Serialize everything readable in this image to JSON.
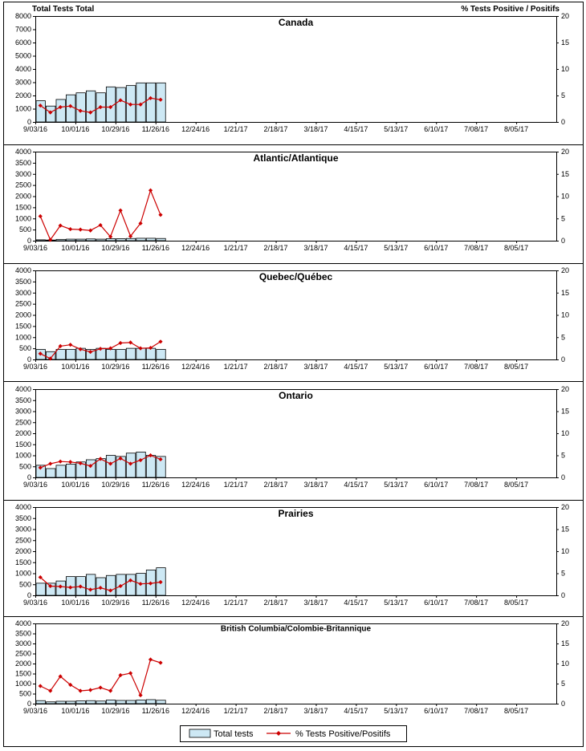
{
  "header": {
    "left_axis_title": "Total Tests Total",
    "right_axis_title": "% Tests Positive / Positifs"
  },
  "legend": {
    "bar_label": "Total tests",
    "line_label": "% Tests Positive/Positifs"
  },
  "colors": {
    "bar_fill": "#cde8f4",
    "bar_stroke": "#000000",
    "line": "#cc0000",
    "axis": "#000000"
  },
  "x_ticks": [
    "9/03/16",
    "10/01/16",
    "10/29/16",
    "11/26/16",
    "12/24/16",
    "1/21/17",
    "2/18/17",
    "3/18/17",
    "4/15/17",
    "5/13/17",
    "6/10/17",
    "7/08/17",
    "8/05/17"
  ],
  "chart_data": [
    {
      "type": "bar",
      "title": "Canada",
      "ylim": [
        0,
        8000
      ],
      "y_ticks": [
        "0",
        "1000",
        "2000",
        "3000",
        "4000",
        "5000",
        "6000",
        "7000",
        "8000"
      ],
      "y2lim": [
        0,
        20
      ],
      "y2_ticks": [
        "0",
        "5",
        "10",
        "15",
        "20"
      ],
      "weeks": 52,
      "series": [
        {
          "name": "Total tests",
          "axis": "left",
          "values": [
            1600,
            1200,
            1700,
            2050,
            2200,
            2350,
            2200,
            2650,
            2600,
            2750,
            2950,
            2950,
            2950
          ]
        },
        {
          "name": "% Tests Positive/Positifs",
          "axis": "right",
          "values": [
            3.1,
            1.8,
            2.8,
            3.0,
            2.1,
            1.8,
            2.8,
            2.8,
            4.1,
            3.3,
            3.3,
            4.5,
            4.2
          ]
        }
      ]
    },
    {
      "type": "bar",
      "title": "Atlantic/Atlantique",
      "ylim": [
        0,
        4000
      ],
      "y_ticks": [
        "0",
        "500",
        "1000",
        "1500",
        "2000",
        "2500",
        "3000",
        "3500",
        "4000"
      ],
      "y2lim": [
        0,
        20
      ],
      "y2_ticks": [
        "0",
        "5",
        "10",
        "15",
        "20"
      ],
      "weeks": 52,
      "series": [
        {
          "name": "Total tests",
          "axis": "left",
          "values": [
            40,
            30,
            60,
            70,
            70,
            80,
            70,
            90,
            90,
            100,
            110,
            110,
            100
          ]
        },
        {
          "name": "% Tests Positive/Positifs",
          "axis": "right",
          "values": [
            5.5,
            0.2,
            3.4,
            2.6,
            2.5,
            2.3,
            3.5,
            0.9,
            6.8,
            1.0,
            3.9,
            11.3,
            5.8
          ]
        }
      ]
    },
    {
      "type": "bar",
      "title": "Quebec/Québec",
      "ylim": [
        0,
        4000
      ],
      "y_ticks": [
        "0",
        "500",
        "1000",
        "1500",
        "2000",
        "2500",
        "3000",
        "3500",
        "4000"
      ],
      "y2lim": [
        0,
        20
      ],
      "y2_ticks": [
        "0",
        "5",
        "10",
        "15",
        "20"
      ],
      "weeks": 52,
      "series": [
        {
          "name": "Total tests",
          "axis": "left",
          "values": [
            450,
            350,
            450,
            450,
            500,
            450,
            500,
            450,
            450,
            500,
            500,
            500,
            450
          ]
        },
        {
          "name": "% Tests Positive/Positifs",
          "axis": "right",
          "values": [
            1.3,
            0.2,
            3.0,
            3.3,
            2.3,
            1.7,
            2.4,
            2.5,
            3.7,
            3.8,
            2.5,
            2.6,
            4.0
          ]
        }
      ]
    },
    {
      "type": "bar",
      "title": "Ontario",
      "ylim": [
        0,
        4000
      ],
      "y_ticks": [
        "0",
        "500",
        "1000",
        "1500",
        "2000",
        "2500",
        "3000",
        "3500",
        "4000"
      ],
      "y2lim": [
        0,
        20
      ],
      "y2_ticks": [
        "0",
        "5",
        "10",
        "15",
        "20"
      ],
      "weeks": 52,
      "series": [
        {
          "name": "Total tests",
          "axis": "left",
          "values": [
            550,
            400,
            550,
            600,
            700,
            800,
            850,
            1000,
            950,
            1100,
            1150,
            1000,
            950
          ]
        },
        {
          "name": "% Tests Positive/Positifs",
          "axis": "right",
          "values": [
            2.2,
            3.1,
            3.6,
            3.5,
            3.2,
            2.6,
            4.2,
            3.1,
            4.3,
            3.1,
            3.9,
            5.0,
            4.1
          ]
        }
      ]
    },
    {
      "type": "bar",
      "title": "Prairies",
      "ylim": [
        0,
        4000
      ],
      "y_ticks": [
        "0",
        "500",
        "1000",
        "1500",
        "2000",
        "2500",
        "3000",
        "3500",
        "4000"
      ],
      "y2lim": [
        0,
        20
      ],
      "y2_ticks": [
        "0",
        "5",
        "10",
        "15",
        "20"
      ],
      "weeks": 52,
      "series": [
        {
          "name": "Total tests",
          "axis": "left",
          "values": [
            550,
            550,
            650,
            850,
            850,
            950,
            800,
            900,
            950,
            950,
            1000,
            1150,
            1250
          ]
        },
        {
          "name": "% Tests Positive/Positifs",
          "axis": "right",
          "values": [
            4.1,
            2.1,
            2.0,
            1.8,
            2.0,
            1.3,
            1.7,
            1.1,
            2.1,
            3.4,
            2.6,
            2.7,
            3.0
          ]
        }
      ]
    },
    {
      "type": "bar",
      "title": "British Columbia/Colombie-Britannique",
      "ylim": [
        0,
        4000
      ],
      "y_ticks": [
        "0",
        "500",
        "1000",
        "1500",
        "2000",
        "2500",
        "3000",
        "3500",
        "4000"
      ],
      "y2lim": [
        0,
        20
      ],
      "y2_ticks": [
        "0",
        "5",
        "10",
        "15",
        "20"
      ],
      "weeks": 52,
      "series": [
        {
          "name": "Total tests",
          "axis": "left",
          "values": [
            150,
            90,
            120,
            120,
            140,
            150,
            130,
            180,
            160,
            160,
            180,
            200,
            170
          ]
        },
        {
          "name": "% Tests Positive/Positifs",
          "axis": "right",
          "values": [
            4.4,
            3.2,
            6.8,
            4.7,
            3.2,
            3.4,
            4.0,
            3.2,
            7.1,
            7.6,
            2.1,
            11.0,
            10.2
          ]
        }
      ]
    }
  ]
}
